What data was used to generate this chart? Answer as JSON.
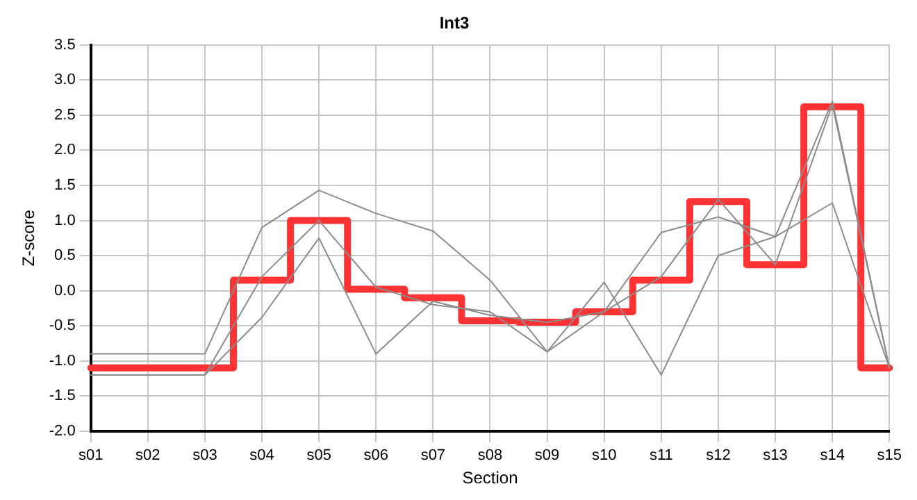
{
  "chart_data": {
    "type": "line",
    "title": "Int3",
    "xlabel": "Section",
    "ylabel": "Z-score",
    "categories": [
      "s01",
      "s02",
      "s03",
      "s04",
      "s05",
      "s06",
      "s07",
      "s08",
      "s09",
      "s10",
      "s11",
      "s12",
      "s13",
      "s14",
      "s15"
    ],
    "series": [
      {
        "color": "#8c8c8c",
        "values": [
          -0.9,
          -0.9,
          -0.9,
          0.9,
          1.43,
          1.1,
          0.85,
          0.15,
          -0.87,
          0.12,
          -1.2,
          0.5,
          0.77,
          2.7,
          -1.1
        ]
      },
      {
        "color": "#8c8c8c",
        "values": [
          -1.2,
          -1.2,
          -1.2,
          0.2,
          1.0,
          0.05,
          -0.2,
          -0.3,
          -0.87,
          -0.3,
          0.83,
          1.05,
          0.77,
          1.25,
          -1.1
        ]
      },
      {
        "color": "#8c8c8c",
        "values": [
          -1.2,
          -1.2,
          -1.2,
          -0.38,
          0.75,
          -0.9,
          -0.15,
          -0.35,
          -0.45,
          -0.3,
          0.2,
          1.3,
          0.37,
          2.65,
          -1.1
        ]
      },
      {
        "type": "step",
        "color": "#ff3333",
        "values": [
          -1.1,
          -1.1,
          -1.1,
          0.15,
          1.0,
          0.02,
          -0.1,
          -0.43,
          -0.45,
          -0.3,
          0.15,
          1.27,
          0.37,
          2.62,
          -1.1
        ]
      }
    ],
    "ylim": [
      -2,
      3.5
    ],
    "yticks": [
      {
        "value": -2,
        "label": "-2.0"
      },
      -1.5,
      {
        "value": -1,
        "label": "-1.0"
      },
      -0.5,
      {
        "value": 0,
        "label": "0.0"
      },
      0.5,
      {
        "value": 1,
        "label": "1.0"
      },
      1.5,
      {
        "value": 2,
        "label": "2.0"
      },
      2.5,
      {
        "value": 3,
        "label": "3.0"
      },
      3.5
    ],
    "grid": true,
    "legend": false,
    "marker": "none",
    "line_style": "solid"
  }
}
